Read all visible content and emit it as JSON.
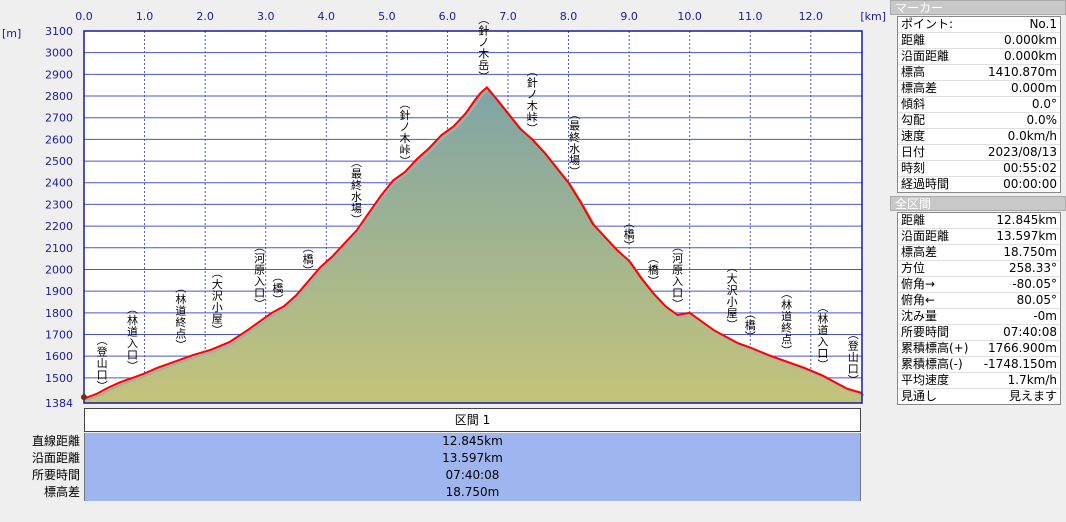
{
  "chart_data": {
    "type": "area",
    "x_unit": "[km]",
    "y_unit": "[m]",
    "xlim": [
      0,
      12.845
    ],
    "ylim": [
      1384,
      3100
    ],
    "x_ticks": [
      "0.0",
      "1.0",
      "2.0",
      "3.0",
      "4.0",
      "5.0",
      "6.0",
      "7.0",
      "8.0",
      "9.0",
      "10.0",
      "11.0",
      "12.0"
    ],
    "y_ticks": [
      "3100",
      "3000",
      "2900",
      "2800",
      "2700",
      "2600",
      "2500",
      "2400",
      "2300",
      "2200",
      "2100",
      "2000",
      "1900",
      "1800",
      "1700",
      "1600",
      "1500",
      "1384"
    ],
    "x": [
      0,
      0.05,
      0.2,
      0.4,
      0.6,
      0.8,
      1.0,
      1.2,
      1.5,
      1.8,
      2.1,
      2.4,
      2.7,
      2.9,
      3.1,
      3.3,
      3.5,
      3.7,
      3.9,
      4.1,
      4.3,
      4.5,
      4.7,
      4.9,
      5.1,
      5.3,
      5.5,
      5.7,
      5.9,
      6.1,
      6.3,
      6.45,
      6.55,
      6.65,
      6.8,
      7.0,
      7.2,
      7.4,
      7.6,
      7.8,
      8.0,
      8.2,
      8.4,
      8.6,
      8.8,
      9.0,
      9.2,
      9.4,
      9.6,
      9.8,
      10.0,
      10.2,
      10.4,
      10.6,
      10.8,
      11.0,
      11.3,
      11.6,
      11.9,
      12.2,
      12.4,
      12.6,
      12.845
    ],
    "y": [
      1411,
      1410,
      1425,
      1455,
      1480,
      1500,
      1520,
      1545,
      1575,
      1605,
      1630,
      1665,
      1720,
      1760,
      1800,
      1830,
      1880,
      1945,
      2010,
      2060,
      2120,
      2180,
      2260,
      2340,
      2410,
      2450,
      2510,
      2560,
      2620,
      2660,
      2720,
      2780,
      2815,
      2840,
      2790,
      2720,
      2650,
      2600,
      2540,
      2470,
      2400,
      2310,
      2210,
      2150,
      2090,
      2040,
      1960,
      1890,
      1830,
      1790,
      1800,
      1760,
      1720,
      1690,
      1660,
      1640,
      1605,
      1575,
      1545,
      1510,
      1480,
      1450,
      1430
    ],
    "markers": [
      {
        "label": "(登山口)",
        "x": 0.3,
        "y": 1411
      },
      {
        "label": "(林道入口)",
        "x": 0.8,
        "y": 1503
      },
      {
        "label": "(林道終点)",
        "x": 1.6,
        "y": 1600
      },
      {
        "label": "(大沢小屋)",
        "x": 2.2,
        "y": 1670
      },
      {
        "label": "(河原入口)",
        "x": 2.9,
        "y": 1790
      },
      {
        "label": "(橋)",
        "x": 3.2,
        "y": 1810
      },
      {
        "label": "(橋)",
        "x": 3.7,
        "y": 1945
      },
      {
        "label": "(最終水場)",
        "x": 4.5,
        "y": 2180
      },
      {
        "label": "(針ノ木峠)",
        "x": 5.3,
        "y": 2450
      },
      {
        "label": "(針ノ木岳)",
        "x": 6.6,
        "y": 2840
      },
      {
        "label": "(針ノ木峠)",
        "x": 7.4,
        "y": 2600
      },
      {
        "label": "(最終水場)",
        "x": 8.1,
        "y": 2400
      },
      {
        "label": "(橋)",
        "x": 9.0,
        "y": 2060
      },
      {
        "label": "(河原入口)",
        "x": 9.8,
        "y": 1790
      },
      {
        "label": "(橋)",
        "x": 9.4,
        "y": 1895
      },
      {
        "label": "(大沢小屋)",
        "x": 10.7,
        "y": 1695
      },
      {
        "label": "(橋)",
        "x": 11.0,
        "y": 1640
      },
      {
        "label": "(林道終点)",
        "x": 11.6,
        "y": 1575
      },
      {
        "label": "(林道入口)",
        "x": 12.2,
        "y": 1510
      },
      {
        "label": "(登山口)",
        "x": 12.7,
        "y": 1440
      }
    ],
    "colors": {
      "line": "#ff0000",
      "frame": "#1a1aa0",
      "grid": "#4a55d0",
      "fill_top": "#7fa4a6",
      "fill_bottom": "#c4c47a"
    }
  },
  "section": {
    "title": "区間 1"
  },
  "summary": [
    {
      "label": "直線距離",
      "value": "12.845km"
    },
    {
      "label": "沿面距離",
      "value": "13.597km"
    },
    {
      "label": "所要時間",
      "value": "07:40:08"
    },
    {
      "label": "標高差",
      "value": "18.750m"
    }
  ],
  "marker_panel": {
    "title": "マーカー",
    "rows": [
      {
        "k": "ポイント:",
        "v": "No.1"
      },
      {
        "k": "距離",
        "v": "0.000km"
      },
      {
        "k": "沿面距離",
        "v": "0.000km"
      },
      {
        "k": "標高",
        "v": "1410.870m"
      },
      {
        "k": "標高差",
        "v": "0.000m"
      },
      {
        "k": "傾斜",
        "v": "0.0°"
      },
      {
        "k": "勾配",
        "v": "0.0%"
      },
      {
        "k": "速度",
        "v": "0.0km/h"
      },
      {
        "k": "日付",
        "v": "2023/08/13"
      },
      {
        "k": "時刻",
        "v": "00:55:02"
      },
      {
        "k": "経過時間",
        "v": "00:00:00"
      }
    ]
  },
  "section_panel": {
    "title": "全区間",
    "rows": [
      {
        "k": "距離",
        "v": "12.845km"
      },
      {
        "k": "沿面距離",
        "v": "13.597km"
      },
      {
        "k": "標高差",
        "v": "18.750m"
      },
      {
        "k": "方位",
        "v": "258.33°"
      },
      {
        "k": "俯角→",
        "v": "-80.05°"
      },
      {
        "k": "俯角←",
        "v": "80.05°"
      },
      {
        "k": "沈み量",
        "v": "-0m"
      },
      {
        "k": "所要時間",
        "v": "07:40:08"
      },
      {
        "k": "累積標高(+)",
        "v": "1766.900m"
      },
      {
        "k": "累積標高(-)",
        "v": "-1748.150m"
      },
      {
        "k": "平均速度",
        "v": "1.7km/h"
      },
      {
        "k": "見通し",
        "v": "見えます"
      }
    ]
  }
}
